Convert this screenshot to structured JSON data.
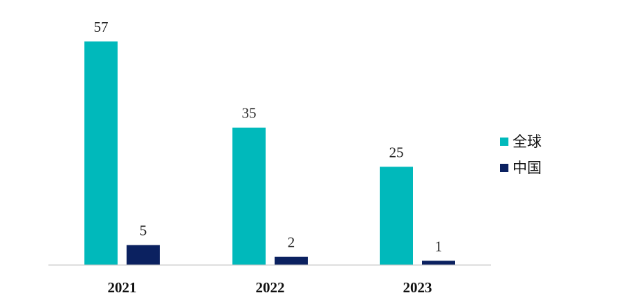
{
  "chart_data": {
    "type": "bar",
    "categories": [
      "2021",
      "2022",
      "2023"
    ],
    "series": [
      {
        "name": "全球",
        "values": [
          57,
          35,
          25
        ],
        "color": "#00B9BB"
      },
      {
        "name": "中国",
        "values": [
          5,
          2,
          1
        ],
        "color": "#0B2160"
      }
    ],
    "ylim": [
      0,
      57
    ],
    "grid": false,
    "legend_position": "right"
  }
}
